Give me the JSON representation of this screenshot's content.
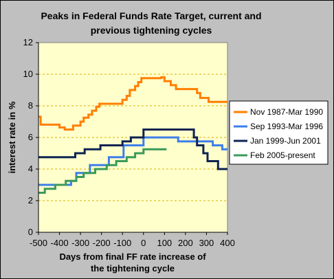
{
  "chart_data": {
    "type": "line",
    "title_lines": [
      "Peaks in Federal Funds Rate Target, current and",
      "previous tightening cycles"
    ],
    "xlabel_lines": [
      "Days from final FF rate increase of",
      "the tightening cycle"
    ],
    "ylabel": "interest rate in %",
    "xlim": [
      -500,
      400
    ],
    "ylim": [
      0,
      12
    ],
    "xticks": [
      -500,
      -400,
      -300,
      -200,
      -100,
      0,
      100,
      200,
      300,
      400
    ],
    "yticks": [
      0,
      2,
      4,
      6,
      8,
      10,
      12
    ],
    "grid": "horizontal dashed",
    "legend_position": "right",
    "colors": {
      "plot_bg": "#ffffcc",
      "frame_bg": "#c0c0c0",
      "grid": "#d9b000"
    },
    "series": [
      {
        "name": "Nov 1987-Mar 1990",
        "color": "#ff7f00",
        "points": [
          [
            -500,
            7.31
          ],
          [
            -490,
            7.31
          ],
          [
            -490,
            6.81
          ],
          [
            -400,
            6.81
          ],
          [
            -400,
            6.63
          ],
          [
            -375,
            6.63
          ],
          [
            -375,
            6.5
          ],
          [
            -335,
            6.5
          ],
          [
            -335,
            6.75
          ],
          [
            -300,
            6.75
          ],
          [
            -300,
            7.0
          ],
          [
            -285,
            7.0
          ],
          [
            -285,
            7.25
          ],
          [
            -262,
            7.25
          ],
          [
            -262,
            7.44
          ],
          [
            -245,
            7.44
          ],
          [
            -245,
            7.69
          ],
          [
            -225,
            7.69
          ],
          [
            -225,
            7.94
          ],
          [
            -210,
            7.94
          ],
          [
            -210,
            8.13
          ],
          [
            -100,
            8.13
          ],
          [
            -100,
            8.38
          ],
          [
            -80,
            8.38
          ],
          [
            -80,
            8.63
          ],
          [
            -65,
            8.63
          ],
          [
            -65,
            9.0
          ],
          [
            -40,
            9.0
          ],
          [
            -40,
            9.25
          ],
          [
            -25,
            9.25
          ],
          [
            -25,
            9.5
          ],
          [
            -10,
            9.5
          ],
          [
            -10,
            9.75
          ],
          [
            85,
            9.75
          ],
          [
            85,
            9.81
          ],
          [
            100,
            9.81
          ],
          [
            100,
            9.56
          ],
          [
            130,
            9.56
          ],
          [
            130,
            9.31
          ],
          [
            155,
            9.31
          ],
          [
            155,
            9.06
          ],
          [
            255,
            9.06
          ],
          [
            255,
            8.81
          ],
          [
            270,
            8.81
          ],
          [
            270,
            8.5
          ],
          [
            310,
            8.5
          ],
          [
            310,
            8.25
          ],
          [
            400,
            8.25
          ]
        ]
      },
      {
        "name": "Sep 1993-Mar 1996",
        "color": "#3d7eea",
        "points": [
          [
            -500,
            3.0
          ],
          [
            -345,
            3.0
          ],
          [
            -345,
            3.25
          ],
          [
            -320,
            3.25
          ],
          [
            -320,
            3.75
          ],
          [
            -255,
            3.75
          ],
          [
            -255,
            4.25
          ],
          [
            -165,
            4.25
          ],
          [
            -165,
            4.75
          ],
          [
            -95,
            4.75
          ],
          [
            -95,
            5.5
          ],
          [
            0,
            5.5
          ],
          [
            0,
            6.0
          ],
          [
            165,
            6.0
          ],
          [
            165,
            5.75
          ],
          [
            330,
            5.75
          ],
          [
            330,
            5.5
          ],
          [
            375,
            5.5
          ],
          [
            375,
            5.25
          ],
          [
            400,
            5.25
          ]
        ]
      },
      {
        "name": "Jan 1999-Jun 2001",
        "color": "#0d2350",
        "points": [
          [
            -500,
            4.75
          ],
          [
            -325,
            4.75
          ],
          [
            -325,
            5.0
          ],
          [
            -280,
            5.0
          ],
          [
            -280,
            5.25
          ],
          [
            -205,
            5.25
          ],
          [
            -205,
            5.5
          ],
          [
            -100,
            5.5
          ],
          [
            -100,
            5.75
          ],
          [
            -60,
            5.75
          ],
          [
            -60,
            6.0
          ],
          [
            0,
            6.0
          ],
          [
            0,
            6.5
          ],
          [
            240,
            6.5
          ],
          [
            240,
            6.0
          ],
          [
            255,
            6.0
          ],
          [
            255,
            5.5
          ],
          [
            285,
            5.5
          ],
          [
            285,
            5.0
          ],
          [
            305,
            5.0
          ],
          [
            305,
            4.5
          ],
          [
            355,
            4.5
          ],
          [
            355,
            4.0
          ],
          [
            400,
            4.0
          ]
        ]
      },
      {
        "name": "Feb 2005-present",
        "color": "#3a9a5a",
        "points": [
          [
            -500,
            2.5
          ],
          [
            -470,
            2.5
          ],
          [
            -470,
            2.75
          ],
          [
            -420,
            2.75
          ],
          [
            -420,
            3.0
          ],
          [
            -370,
            3.0
          ],
          [
            -370,
            3.25
          ],
          [
            -320,
            3.25
          ],
          [
            -320,
            3.5
          ],
          [
            -285,
            3.5
          ],
          [
            -285,
            3.75
          ],
          [
            -230,
            3.75
          ],
          [
            -230,
            4.0
          ],
          [
            -175,
            4.0
          ],
          [
            -175,
            4.25
          ],
          [
            -130,
            4.25
          ],
          [
            -130,
            4.5
          ],
          [
            -80,
            4.5
          ],
          [
            -80,
            4.75
          ],
          [
            -40,
            4.75
          ],
          [
            -40,
            5.0
          ],
          [
            0,
            5.0
          ],
          [
            0,
            5.25
          ],
          [
            110,
            5.25
          ]
        ]
      }
    ]
  }
}
